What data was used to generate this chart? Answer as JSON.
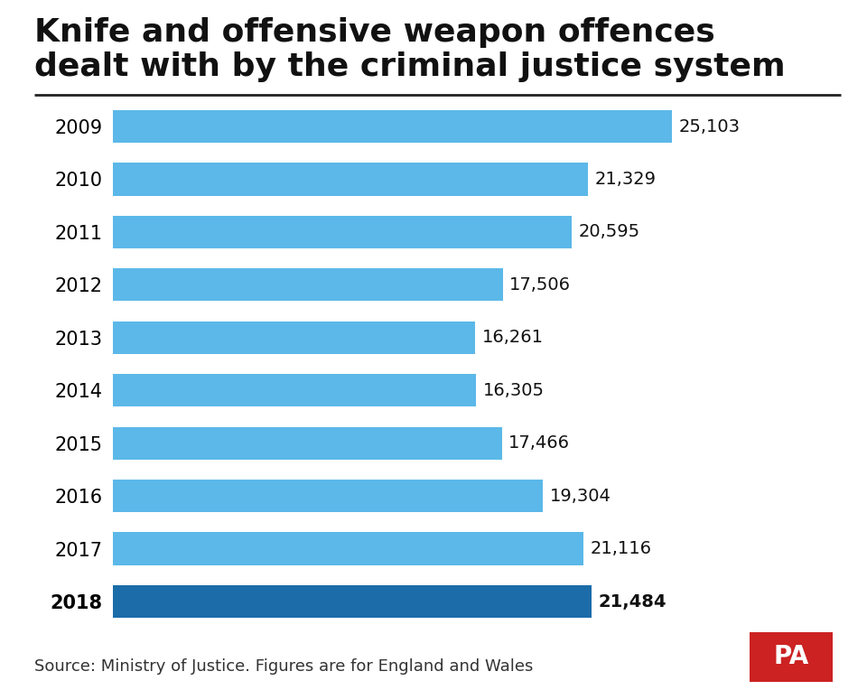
{
  "title": "Knife and offensive weapon offences\ndealt with by the criminal justice system",
  "years": [
    "2009",
    "2010",
    "2011",
    "2012",
    "2013",
    "2014",
    "2015",
    "2016",
    "2017",
    "2018"
  ],
  "values": [
    25103,
    21329,
    20595,
    17506,
    16261,
    16305,
    17466,
    19304,
    21116,
    21484
  ],
  "labels": [
    "25,103",
    "21,329",
    "20,595",
    "17,506",
    "16,261",
    "16,305",
    "17,466",
    "19,304",
    "21,116",
    "21,484"
  ],
  "bar_colors": [
    "#5BB8E8",
    "#5BB8E8",
    "#5BB8E8",
    "#5BB8E8",
    "#5BB8E8",
    "#5BB8E8",
    "#5BB8E8",
    "#5BB8E8",
    "#5BB8E8",
    "#1B6CA8"
  ],
  "background_color": "#FFFFFF",
  "title_fontsize": 26,
  "label_fontsize": 14,
  "year_fontsize": 15,
  "source_text": "Source: Ministry of Justice. Figures are for England and Wales",
  "source_fontsize": 13,
  "xlim": [
    0,
    28000
  ],
  "pa_logo_bg": "#CC2222",
  "pa_logo_text": "PA",
  "separator_color": "#222222",
  "title_color": "#111111",
  "bar_label_color": "#111111"
}
